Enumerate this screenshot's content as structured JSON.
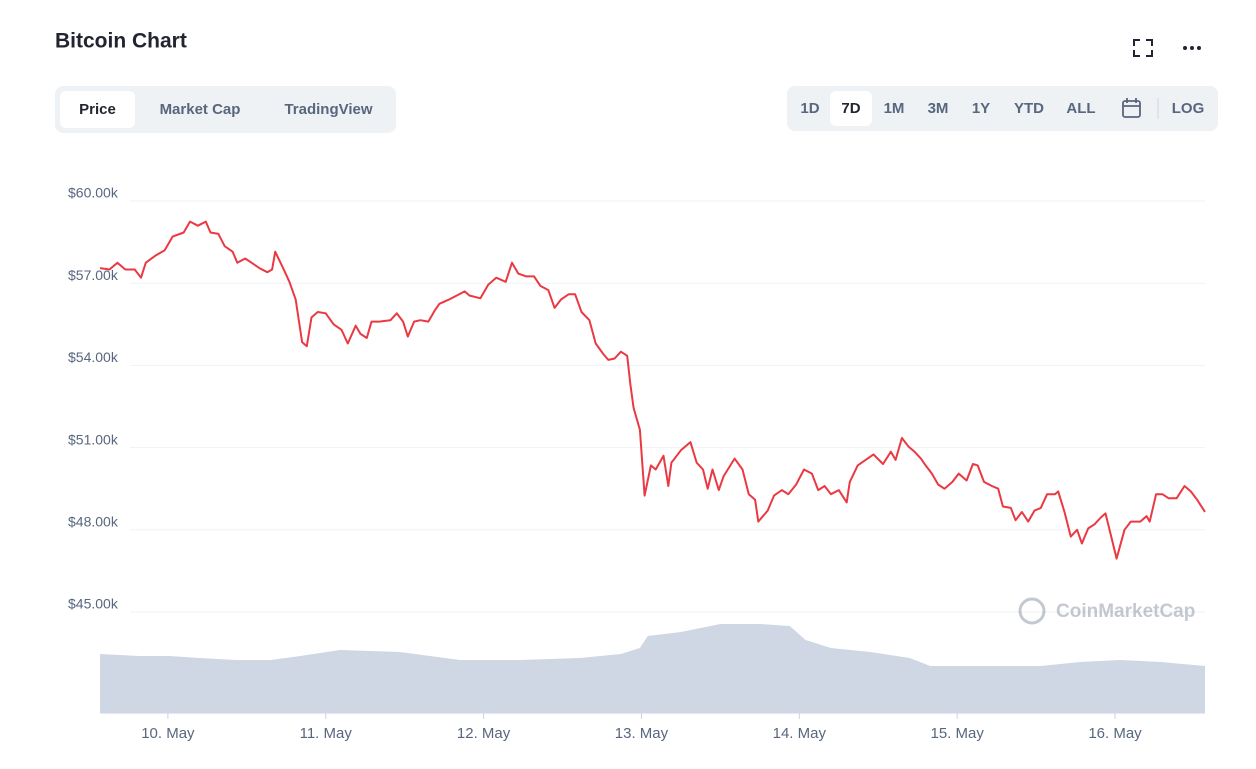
{
  "chart_data": {
    "type": "line",
    "title": "Bitcoin Chart",
    "xlim": [
      9.57,
      16.57
    ],
    "xticks": [
      {
        "value": 10,
        "label": "10. May"
      },
      {
        "value": 11,
        "label": "11. May"
      },
      {
        "value": 12,
        "label": "12. May"
      },
      {
        "value": 13,
        "label": "13. May"
      },
      {
        "value": 14,
        "label": "14. May"
      },
      {
        "value": 15,
        "label": "15. May"
      },
      {
        "value": 16,
        "label": "16. May"
      }
    ],
    "ylim": [
      45000,
      60000
    ],
    "yticks": [
      {
        "value": 45000,
        "label": "$45.00k"
      },
      {
        "value": 48000,
        "label": "$48.00k"
      },
      {
        "value": 51000,
        "label": "$51.00k"
      },
      {
        "value": 54000,
        "label": "$54.00k"
      },
      {
        "value": 57000,
        "label": "$57.00k"
      },
      {
        "value": 60000,
        "label": "$60.00k"
      }
    ],
    "grid": true,
    "series": [
      {
        "color": "#ea3943",
        "x": [
          9.57,
          9.63,
          9.68,
          9.73,
          9.79,
          9.83,
          9.86,
          9.92,
          9.98,
          10.03,
          10.1,
          10.14,
          10.19,
          10.24,
          10.27,
          10.32,
          10.36,
          10.41,
          10.44,
          10.49,
          10.53,
          10.58,
          10.63,
          10.66,
          10.68,
          10.73,
          10.77,
          10.81,
          10.85,
          10.88,
          10.91,
          10.95,
          11.0,
          11.05,
          11.1,
          11.14,
          11.19,
          11.22,
          11.26,
          11.29,
          11.34,
          11.41,
          11.45,
          11.49,
          11.52,
          11.56,
          11.6,
          11.65,
          11.69,
          11.72,
          11.78,
          11.83,
          11.88,
          11.91,
          11.98,
          12.03,
          12.08,
          12.14,
          12.18,
          12.22,
          12.27,
          12.32,
          12.36,
          12.41,
          12.45,
          12.49,
          12.54,
          12.58,
          12.62,
          12.67,
          12.71,
          12.76,
          12.79,
          12.83,
          12.87,
          12.91,
          12.93,
          12.95,
          12.99,
          13.02,
          13.06,
          13.09,
          13.14,
          13.17,
          13.19,
          13.25,
          13.31,
          13.35,
          13.39,
          13.42,
          13.45,
          13.49,
          13.52,
          13.59,
          13.64,
          13.68,
          13.72,
          13.74,
          13.8,
          13.84,
          13.89,
          13.93,
          13.98,
          14.03,
          14.08,
          14.12,
          14.16,
          14.2,
          14.25,
          14.3,
          14.32,
          14.37,
          14.42,
          14.47,
          14.53,
          14.58,
          14.61,
          14.65,
          14.69,
          14.73,
          14.77,
          14.8,
          14.84,
          14.88,
          14.92,
          14.97,
          15.01,
          15.06,
          15.1,
          15.13,
          15.17,
          15.22,
          15.26,
          15.29,
          15.34,
          15.37,
          15.41,
          15.45,
          15.49,
          15.53,
          15.57,
          15.62,
          15.64,
          15.68,
          15.72,
          15.76,
          15.79,
          15.83,
          15.87,
          15.91,
          15.94,
          15.98,
          16.01,
          16.06,
          16.1,
          16.16,
          16.2,
          16.22,
          16.26,
          16.3,
          16.34,
          16.39,
          16.44,
          16.48,
          16.52,
          16.57
        ],
        "values": [
          57550,
          57500,
          57750,
          57500,
          57500,
          57200,
          57750,
          58000,
          58200,
          58700,
          58850,
          59250,
          59100,
          59250,
          58850,
          58800,
          58350,
          58150,
          57750,
          57900,
          57750,
          57550,
          57400,
          57500,
          58150,
          57550,
          57050,
          56400,
          54850,
          54700,
          55750,
          55950,
          55900,
          55500,
          55300,
          54800,
          55450,
          55150,
          55000,
          55600,
          55600,
          55650,
          55900,
          55600,
          55050,
          55600,
          55650,
          55600,
          56000,
          56250,
          56400,
          56550,
          56700,
          56550,
          56450,
          56950,
          57200,
          57050,
          57750,
          57350,
          57250,
          57250,
          56900,
          56750,
          56100,
          56400,
          56600,
          56600,
          55950,
          55650,
          54800,
          54400,
          54200,
          54250,
          54500,
          54350,
          53300,
          52450,
          51650,
          49250,
          50350,
          50200,
          50700,
          49600,
          50450,
          50900,
          51200,
          50450,
          50200,
          49500,
          50200,
          49450,
          49950,
          50600,
          50200,
          49300,
          49100,
          48300,
          48700,
          49250,
          49450,
          49300,
          49650,
          50200,
          50050,
          49450,
          49600,
          49300,
          49450,
          49000,
          49750,
          50350,
          50550,
          50750,
          50400,
          50850,
          50550,
          51350,
          51050,
          50850,
          50600,
          50350,
          50050,
          49650,
          49500,
          49750,
          50050,
          49800,
          50400,
          50350,
          49750,
          49600,
          49500,
          48850,
          48800,
          48350,
          48650,
          48300,
          48700,
          48800,
          49300,
          49300,
          49400,
          48650,
          47750,
          48000,
          47500,
          48050,
          48200,
          48450,
          48600,
          47650,
          46950,
          48000,
          48300,
          48300,
          48500,
          48300,
          49300,
          49300,
          49150,
          49150,
          49600,
          49400,
          49100,
          48650
        ]
      }
    ],
    "volume": {
      "color": "#cfd6e4",
      "ylim": [
        0,
        100
      ],
      "x": [
        9.57,
        9.82,
        10.01,
        10.2,
        10.43,
        10.65,
        10.84,
        11.09,
        11.47,
        11.85,
        12.23,
        12.61,
        12.87,
        12.99,
        13.04,
        13.25,
        13.5,
        13.75,
        13.94,
        14.04,
        14.2,
        14.45,
        14.7,
        14.83,
        15.15,
        15.53,
        15.78,
        16.03,
        16.29,
        16.57
      ],
      "values": [
        59,
        57,
        57,
        55,
        53,
        53,
        57,
        63,
        61,
        53,
        53,
        55,
        59,
        65,
        77,
        81,
        89,
        89,
        87,
        73,
        65,
        61,
        55,
        47,
        47,
        47,
        51,
        53,
        51,
        47
      ]
    }
  },
  "controls": {
    "views": [
      "Price",
      "Market Cap",
      "TradingView"
    ],
    "active_view": 0,
    "ranges": [
      "1D",
      "7D",
      "1M",
      "3M",
      "1Y",
      "YTD",
      "ALL"
    ],
    "active_range": 1,
    "log": "LOG",
    "watermark": "CoinMarketCap"
  }
}
